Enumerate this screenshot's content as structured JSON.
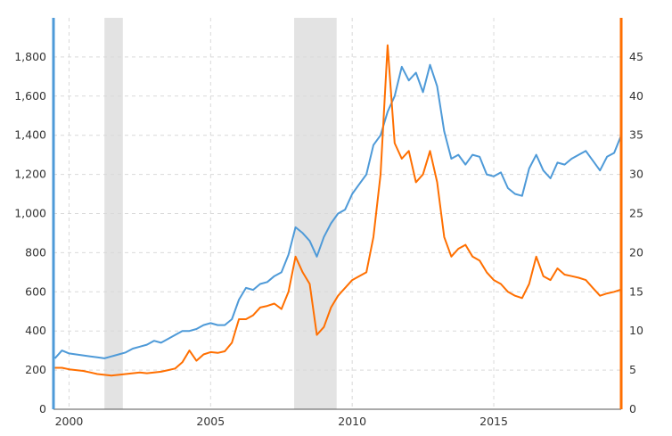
{
  "chart_data": {
    "type": "line",
    "title": "",
    "xlabel": "",
    "ylabel_left": "",
    "ylabel_right": "",
    "xlim": [
      1999.45,
      2019.5
    ],
    "ylim_left": [
      0,
      2000
    ],
    "ylim_right": [
      0,
      50
    ],
    "grid": true,
    "x_ticks": [
      2000,
      2005,
      2010,
      2015
    ],
    "x_tick_labels": [
      "2000",
      "2005",
      "2010",
      "2015"
    ],
    "y_left_ticks": [
      0,
      200,
      400,
      600,
      800,
      1000,
      1200,
      1400,
      1600,
      1800
    ],
    "y_left_tick_labels": [
      "0",
      "200",
      "400",
      "600",
      "800",
      "1,000",
      "1,200",
      "1,400",
      "1,600",
      "1,800"
    ],
    "y_right_ticks": [
      0,
      5,
      10,
      15,
      20,
      25,
      30,
      35,
      40,
      45
    ],
    "y_right_tick_labels": [
      "0",
      "5",
      "10",
      "15",
      "20",
      "25",
      "30",
      "35",
      "40",
      "45"
    ],
    "axis_colors": {
      "left": "#4e9ad8",
      "right": "#ff6f00"
    },
    "recession_bands": [
      [
        2001.25,
        2001.9
      ],
      [
        2007.95,
        2009.45
      ]
    ],
    "recession_color": "#e3e3e3",
    "series": [
      {
        "axis": "left",
        "color": "#4e9ad8",
        "x": [
          1999.5,
          1999.75,
          2000.0,
          2000.25,
          2000.5,
          2000.75,
          2001.0,
          2001.25,
          2001.5,
          2001.75,
          2002.0,
          2002.25,
          2002.5,
          2002.75,
          2003.0,
          2003.25,
          2003.5,
          2003.75,
          2004.0,
          2004.25,
          2004.5,
          2004.75,
          2005.0,
          2005.25,
          2005.5,
          2005.75,
          2006.0,
          2006.25,
          2006.5,
          2006.75,
          2007.0,
          2007.25,
          2007.5,
          2007.75,
          2008.0,
          2008.25,
          2008.5,
          2008.75,
          2009.0,
          2009.25,
          2009.5,
          2009.75,
          2010.0,
          2010.25,
          2010.5,
          2010.75,
          2011.0,
          2011.25,
          2011.5,
          2011.75,
          2012.0,
          2012.25,
          2012.5,
          2012.75,
          2013.0,
          2013.25,
          2013.5,
          2013.75,
          2014.0,
          2014.25,
          2014.5,
          2014.75,
          2015.0,
          2015.25,
          2015.5,
          2015.75,
          2016.0,
          2016.25,
          2016.5,
          2016.75,
          2017.0,
          2017.25,
          2017.5,
          2017.75,
          2018.0,
          2018.25,
          2018.5,
          2018.75,
          2019.0,
          2019.25,
          2019.5
        ],
        "values": [
          260,
          300,
          285,
          280,
          275,
          270,
          265,
          260,
          270,
          280,
          290,
          310,
          320,
          330,
          350,
          340,
          360,
          380,
          400,
          400,
          410,
          430,
          440,
          430,
          430,
          460,
          560,
          620,
          610,
          640,
          650,
          680,
          700,
          790,
          930,
          900,
          860,
          780,
          880,
          950,
          1000,
          1020,
          1100,
          1150,
          1200,
          1350,
          1400,
          1520,
          1600,
          1750,
          1680,
          1720,
          1620,
          1760,
          1650,
          1420,
          1280,
          1300,
          1250,
          1300,
          1290,
          1200,
          1190,
          1210,
          1130,
          1100,
          1090,
          1230,
          1300,
          1220,
          1180,
          1260,
          1250,
          1280,
          1300,
          1320,
          1270,
          1220,
          1290,
          1310,
          1400
        ]
      },
      {
        "axis": "right",
        "color": "#ff6f00",
        "x": [
          1999.5,
          1999.75,
          2000.0,
          2000.25,
          2000.5,
          2000.75,
          2001.0,
          2001.25,
          2001.5,
          2001.75,
          2002.0,
          2002.25,
          2002.5,
          2002.75,
          2003.0,
          2003.25,
          2003.5,
          2003.75,
          2004.0,
          2004.25,
          2004.5,
          2004.75,
          2005.0,
          2005.25,
          2005.5,
          2005.75,
          2006.0,
          2006.25,
          2006.5,
          2006.75,
          2007.0,
          2007.25,
          2007.5,
          2007.75,
          2008.0,
          2008.25,
          2008.5,
          2008.75,
          2009.0,
          2009.25,
          2009.5,
          2009.75,
          2010.0,
          2010.25,
          2010.5,
          2010.75,
          2011.0,
          2011.25,
          2011.5,
          2011.75,
          2012.0,
          2012.25,
          2012.5,
          2012.75,
          2013.0,
          2013.25,
          2013.5,
          2013.75,
          2014.0,
          2014.25,
          2014.5,
          2014.75,
          2015.0,
          2015.25,
          2015.5,
          2015.75,
          2016.0,
          2016.25,
          2016.5,
          2016.75,
          2017.0,
          2017.25,
          2017.5,
          2017.75,
          2018.0,
          2018.25,
          2018.5,
          2018.75,
          2019.0,
          2019.25,
          2019.5
        ],
        "values": [
          5.3,
          5.3,
          5.1,
          5.0,
          4.9,
          4.7,
          4.5,
          4.4,
          4.3,
          4.4,
          4.5,
          4.6,
          4.7,
          4.6,
          4.7,
          4.8,
          5.0,
          5.2,
          6.0,
          7.5,
          6.2,
          7.0,
          7.3,
          7.2,
          7.4,
          8.5,
          11.5,
          11.5,
          12.0,
          13.0,
          13.2,
          13.5,
          12.8,
          15.0,
          19.5,
          17.5,
          16.0,
          9.5,
          10.5,
          13.0,
          14.5,
          15.5,
          16.5,
          17.0,
          17.5,
          22.0,
          30.0,
          46.5,
          34.0,
          32.0,
          33.0,
          29.0,
          30.0,
          33.0,
          29.0,
          22.0,
          19.5,
          20.5,
          21.0,
          19.5,
          19.0,
          17.5,
          16.5,
          16.0,
          15.0,
          14.5,
          14.2,
          16.0,
          19.5,
          17.0,
          16.5,
          18.0,
          17.2,
          17.0,
          16.8,
          16.5,
          15.5,
          14.5,
          14.8,
          15.0,
          15.3
        ]
      }
    ]
  }
}
